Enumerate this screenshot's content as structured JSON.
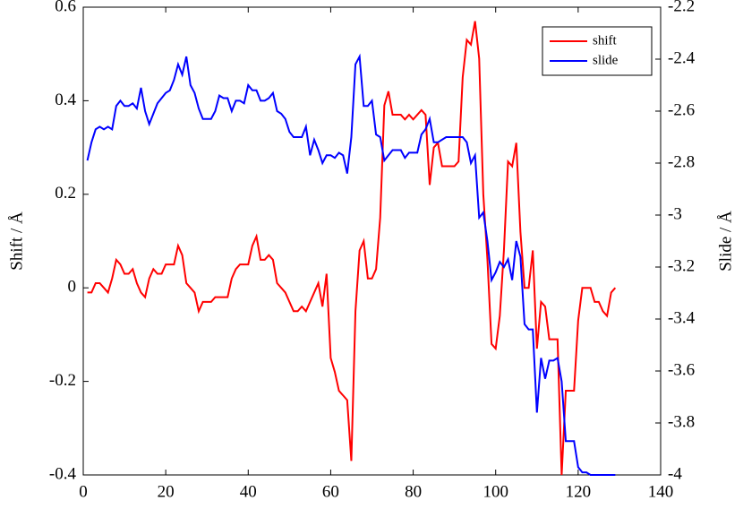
{
  "chart_data": {
    "type": "line",
    "y_label": "Shift / Å",
    "y2_label": "Slide / Å",
    "x": [
      1,
      2,
      3,
      4,
      5,
      6,
      7,
      8,
      9,
      10,
      11,
      12,
      13,
      14,
      15,
      16,
      17,
      18,
      19,
      20,
      21,
      22,
      23,
      24,
      25,
      26,
      27,
      28,
      29,
      30,
      31,
      32,
      33,
      34,
      35,
      36,
      37,
      38,
      39,
      40,
      41,
      42,
      43,
      44,
      45,
      46,
      47,
      48,
      49,
      50,
      51,
      52,
      53,
      54,
      55,
      56,
      57,
      58,
      59,
      60,
      61,
      62,
      63,
      64,
      65,
      66,
      67,
      68,
      69,
      70,
      71,
      72,
      73,
      74,
      75,
      76,
      77,
      78,
      79,
      80,
      81,
      82,
      83,
      84,
      85,
      86,
      87,
      88,
      89,
      90,
      91,
      92,
      93,
      94,
      95,
      96,
      97,
      98,
      99,
      100,
      101,
      102,
      103,
      104,
      105,
      106,
      107,
      108,
      109,
      110,
      111,
      112,
      113,
      114,
      115,
      116,
      117,
      118,
      119,
      120,
      121,
      122,
      123,
      124,
      125,
      126,
      127,
      128,
      129
    ],
    "series": [
      {
        "name": "shift",
        "color": "#ff0000",
        "axis": "y",
        "values": [
          -0.01,
          -0.01,
          0.01,
          0.01,
          0,
          -0.01,
          0.02,
          0.06,
          0.05,
          0.03,
          0.03,
          0.04,
          0.01,
          -0.01,
          -0.02,
          0.02,
          0.04,
          0.03,
          0.03,
          0.05,
          0.05,
          0.05,
          0.09,
          0.07,
          0.01,
          0,
          -0.01,
          -0.05,
          -0.03,
          -0.03,
          -0.03,
          -0.02,
          -0.02,
          -0.02,
          -0.02,
          0.02,
          0.04,
          0.05,
          0.05,
          0.05,
          0.09,
          0.11,
          0.06,
          0.06,
          0.07,
          0.06,
          0.01,
          0,
          -0.01,
          -0.03,
          -0.05,
          -0.05,
          -0.04,
          -0.05,
          -0.03,
          -0.01,
          0.01,
          -0.04,
          0.03,
          -0.15,
          -0.18,
          -0.22,
          -0.23,
          -0.24,
          -0.37,
          -0.05,
          0.08,
          0.1,
          0.02,
          0.02,
          0.04,
          0.15,
          0.39,
          0.42,
          0.37,
          0.37,
          0.37,
          0.36,
          0.37,
          0.36,
          0.37,
          0.38,
          0.37,
          0.22,
          0.3,
          0.31,
          0.26,
          0.26,
          0.26,
          0.26,
          0.27,
          0.45,
          0.53,
          0.52,
          0.57,
          0.49,
          0.2,
          0.06,
          -0.12,
          -0.13,
          -0.06,
          0.08,
          0.27,
          0.26,
          0.31,
          0.12,
          0,
          0,
          0.08,
          -0.13,
          -0.03,
          -0.04,
          -0.11,
          -0.11,
          -0.11,
          -0.4,
          -0.22,
          -0.22,
          -0.22,
          -0.07,
          0,
          0,
          0,
          -0.03,
          -0.03,
          -0.05,
          -0.06,
          -0.01,
          0
        ]
      },
      {
        "name": "slide",
        "color": "#0000ff",
        "axis": "y2",
        "values": [
          -2.79,
          -2.72,
          -2.67,
          -2.66,
          -2.67,
          -2.66,
          -2.67,
          -2.58,
          -2.56,
          -2.58,
          -2.58,
          -2.57,
          -2.59,
          -2.51,
          -2.6,
          -2.65,
          -2.61,
          -2.57,
          -2.55,
          -2.53,
          -2.52,
          -2.48,
          -2.42,
          -2.46,
          -2.39,
          -2.5,
          -2.53,
          -2.59,
          -2.63,
          -2.63,
          -2.63,
          -2.6,
          -2.54,
          -2.55,
          -2.55,
          -2.6,
          -2.56,
          -2.56,
          -2.57,
          -2.5,
          -2.52,
          -2.52,
          -2.56,
          -2.56,
          -2.55,
          -2.53,
          -2.6,
          -2.61,
          -2.63,
          -2.68,
          -2.7,
          -2.7,
          -2.7,
          -2.66,
          -2.77,
          -2.71,
          -2.75,
          -2.8,
          -2.77,
          -2.77,
          -2.78,
          -2.76,
          -2.77,
          -2.84,
          -2.7,
          -2.42,
          -2.39,
          -2.58,
          -2.58,
          -2.56,
          -2.69,
          -2.7,
          -2.79,
          -2.77,
          -2.75,
          -2.75,
          -2.75,
          -2.78,
          -2.76,
          -2.76,
          -2.76,
          -2.69,
          -2.67,
          -2.63,
          -2.72,
          -2.72,
          -2.71,
          -2.7,
          -2.7,
          -2.7,
          -2.7,
          -2.7,
          -2.72,
          -2.8,
          -2.77,
          -3.01,
          -2.99,
          -3.1,
          -3.25,
          -3.22,
          -3.18,
          -3.2,
          -3.17,
          -3.25,
          -3.1,
          -3.16,
          -3.42,
          -3.44,
          -3.44,
          -3.76,
          -3.55,
          -3.63,
          -3.56,
          -3.56,
          -3.55,
          -3.64,
          -3.87,
          -3.87,
          -3.87,
          -3.97,
          -3.99,
          -3.99,
          -4,
          -4,
          -4,
          -4,
          -4,
          -4,
          -4
        ]
      }
    ],
    "xlim": [
      0,
      140
    ],
    "xticks": [
      0,
      20,
      40,
      60,
      80,
      100,
      120,
      140
    ],
    "ylim": [
      -0.4,
      0.6
    ],
    "yticks": [
      -0.4,
      -0.2,
      0,
      0.2,
      0.4,
      0.6
    ],
    "y2lim": [
      -4,
      -2.2
    ],
    "y2ticks": [
      -4,
      -3.8,
      -3.6,
      -3.4,
      -3.2,
      -3,
      -2.8,
      -2.6,
      -2.4,
      -2.2
    ],
    "legend": "upper right"
  }
}
